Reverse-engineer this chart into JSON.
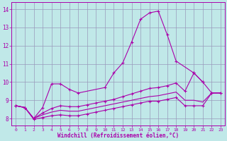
{
  "background_color": "#c0e8e8",
  "grid_color": "#9999bb",
  "line_color": "#aa00aa",
  "title": "Windchill (Refroidissement éolien,°C)",
  "xlim": [
    -0.5,
    23.5
  ],
  "ylim": [
    7.6,
    14.4
  ],
  "yticks": [
    8,
    9,
    10,
    11,
    12,
    13,
    14
  ],
  "xticks": [
    0,
    1,
    2,
    3,
    4,
    5,
    6,
    7,
    8,
    9,
    10,
    11,
    12,
    13,
    14,
    15,
    16,
    17,
    18,
    19,
    20,
    21,
    22,
    23
  ],
  "series": [
    {
      "x": [
        0,
        1,
        2,
        3,
        4,
        5,
        6,
        7,
        10,
        11,
        12,
        13,
        14,
        15,
        16,
        17,
        18,
        20,
        21
      ],
      "y": [
        8.7,
        8.6,
        8.0,
        8.6,
        9.9,
        9.9,
        9.6,
        9.4,
        9.7,
        10.5,
        11.05,
        12.2,
        13.45,
        13.8,
        13.9,
        12.6,
        11.15,
        10.5,
        10.0
      ],
      "marker": true
    },
    {
      "x": [
        0,
        1,
        2,
        3,
        4,
        5,
        6,
        7,
        8,
        9,
        10,
        11,
        12,
        13,
        14,
        15,
        16,
        17,
        18,
        19,
        20,
        21,
        22,
        23
      ],
      "y": [
        8.7,
        8.6,
        8.0,
        8.3,
        8.55,
        8.7,
        8.65,
        8.65,
        8.75,
        8.85,
        8.95,
        9.05,
        9.2,
        9.35,
        9.5,
        9.65,
        9.7,
        9.8,
        9.95,
        9.5,
        10.5,
        10.0,
        9.4,
        9.4
      ],
      "marker": true
    },
    {
      "x": [
        0,
        1,
        2,
        3,
        4,
        5,
        6,
        7,
        8,
        9,
        10,
        11,
        12,
        13,
        14,
        15,
        16,
        17,
        18,
        19,
        20,
        21,
        22,
        23
      ],
      "y": [
        8.7,
        8.6,
        8.0,
        8.2,
        8.35,
        8.45,
        8.4,
        8.4,
        8.5,
        8.6,
        8.7,
        8.8,
        8.9,
        9.0,
        9.1,
        9.2,
        9.25,
        9.35,
        9.45,
        9.0,
        9.0,
        8.9,
        9.4,
        9.4
      ],
      "marker": false
    },
    {
      "x": [
        0,
        1,
        2,
        3,
        4,
        5,
        6,
        7,
        8,
        9,
        10,
        11,
        12,
        13,
        14,
        15,
        16,
        17,
        18,
        19,
        20,
        21,
        22,
        23
      ],
      "y": [
        8.7,
        8.6,
        7.95,
        8.05,
        8.15,
        8.2,
        8.15,
        8.15,
        8.25,
        8.35,
        8.45,
        8.55,
        8.65,
        8.75,
        8.85,
        8.95,
        8.95,
        9.05,
        9.15,
        8.7,
        8.7,
        8.7,
        9.4,
        9.4
      ],
      "marker": true
    }
  ]
}
